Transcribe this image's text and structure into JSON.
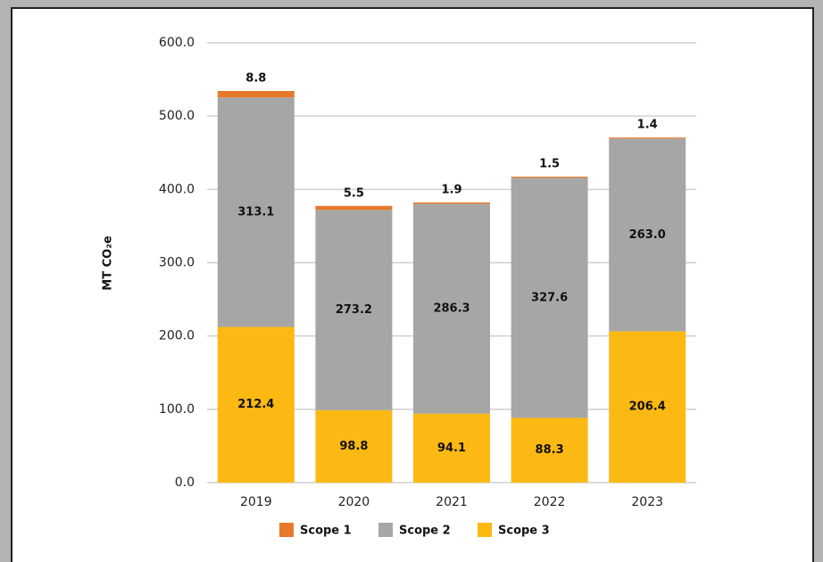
{
  "chart_data": {
    "type": "stacked_bar",
    "y_label": "MT CO₂e",
    "categories": [
      "2019",
      "2020",
      "2021",
      "2022",
      "2023"
    ],
    "series": [
      {
        "name": "Scope 1",
        "color": "#e8792b",
        "values": [
          8.8,
          5.5,
          1.9,
          1.5,
          1.4
        ]
      },
      {
        "name": "Scope 2",
        "color": "#a6a6a6",
        "values": [
          313.1,
          273.2,
          286.3,
          327.6,
          263
        ],
        "value_labels": [
          "313.1",
          "273.2",
          "286.3",
          "327.6",
          "263.0"
        ]
      },
      {
        "name": "Scope 3",
        "color": "#fdb913",
        "values": [
          212.4,
          98.8,
          94.1,
          88.3,
          206.4
        ]
      }
    ],
    "ylim": [
      0,
      600
    ],
    "yticks": [
      {
        "value": 0,
        "label": "0.0"
      },
      {
        "value": 100,
        "label": "100.0"
      },
      {
        "value": 200,
        "label": "200.0"
      },
      {
        "value": 300,
        "label": "300.0"
      },
      {
        "value": 400,
        "label": "400.0"
      },
      {
        "value": 500,
        "label": "500.0"
      },
      {
        "value": 600,
        "label": "600.0"
      }
    ],
    "grid": true,
    "legend": "bottom"
  }
}
